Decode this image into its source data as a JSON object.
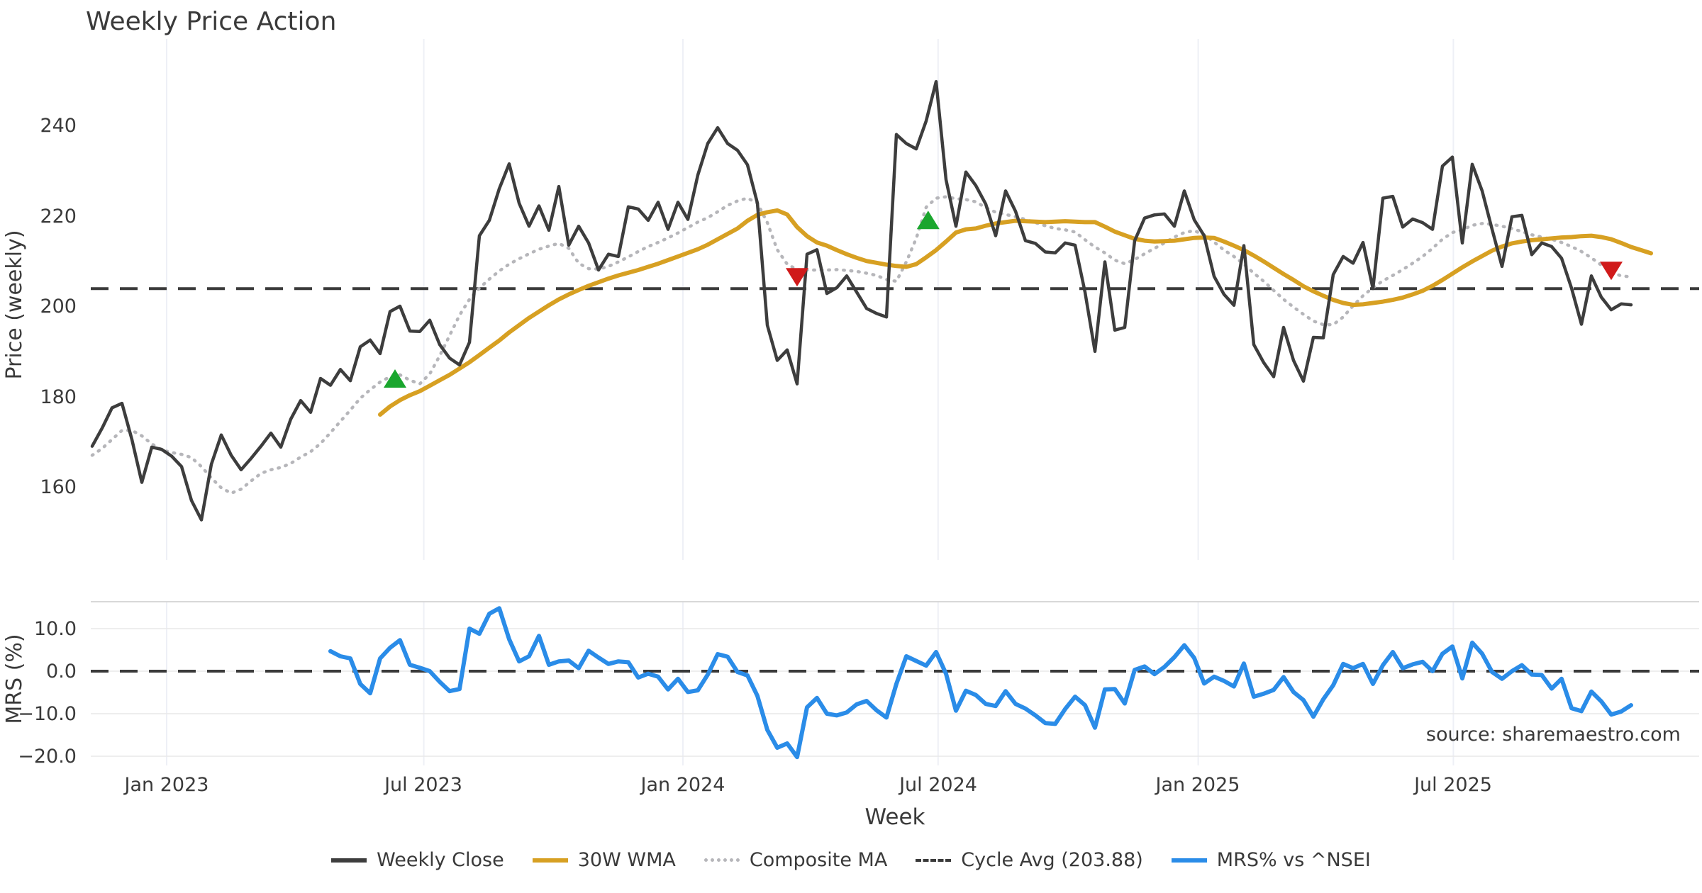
{
  "title": "Weekly Price Action",
  "annotations": {
    "source": "source: sharemaestro.com"
  },
  "axes": {
    "price": {
      "label": "Price (weekly)",
      "tick_labels": [
        "240",
        "220",
        "200",
        "180",
        "160"
      ],
      "tick_values": [
        240,
        220,
        200,
        180,
        160
      ]
    },
    "mrs": {
      "label": "MRS (%)",
      "tick_labels": [
        "10.0",
        "0.0",
        "−10.0",
        "−20.0"
      ],
      "tick_values": [
        10,
        0,
        -10,
        -20
      ]
    },
    "x": {
      "label": "Week",
      "ticks": [
        {
          "label": "Jan 2023",
          "week": 7.5
        },
        {
          "label": "Jul 2023",
          "week": 33.4
        },
        {
          "label": "Jan 2024",
          "week": 59.5
        },
        {
          "label": "Jul 2024",
          "week": 85.2
        },
        {
          "label": "Jan 2025",
          "week": 111.4
        },
        {
          "label": "Jul 2025",
          "week": 137.1
        }
      ]
    }
  },
  "legend": {
    "items": [
      {
        "label": "Weekly Close",
        "color": "#3d3d3d",
        "style": "solid"
      },
      {
        "label": "30W WMA",
        "color": "#d7a022",
        "style": "solid"
      },
      {
        "label": "Composite MA",
        "color": "#b6b6ba",
        "style": "dotted"
      },
      {
        "label": "Cycle Avg (203.88)",
        "color": "#3a3a3a",
        "style": "dashed"
      },
      {
        "label": "MRS% vs ^NSEI",
        "color": "#2a8ce8",
        "style": "solid"
      }
    ]
  },
  "chart_data": {
    "type": "line",
    "title": "Weekly Price Action",
    "xlabel": "Week",
    "x_unit": "weekly index from mid-Nov 2022",
    "panels": {
      "price": {
        "ylabel": "Price (weekly)",
        "ylim": [
          142,
          259
        ],
        "grid": "vertical-only"
      },
      "mrs": {
        "ylabel": "MRS (%)",
        "ylim": [
          -23,
          16.3
        ],
        "grid": "horizontal+vertical"
      }
    },
    "cycle_avg": 203.88,
    "mrs_zero_line": 0,
    "series": [
      {
        "name": "Weekly Close",
        "panel": "price",
        "color": "#3d3d3d",
        "style": "solid",
        "start_week": 0,
        "values": [
          169,
          173,
          177.5,
          178.5,
          170.5,
          161,
          168.8,
          168.3,
          166.8,
          164.5,
          157,
          152.7,
          165,
          171.5,
          167,
          163.8,
          166.3,
          169,
          171.9,
          168.8,
          175,
          179.1,
          176.5,
          184,
          182.5,
          186,
          183.5,
          191,
          192.5,
          189.5,
          198.8,
          200,
          194.5,
          194.4,
          196.9,
          191.5,
          188.5,
          187,
          192,
          215.6,
          219,
          226,
          231.5,
          222.8,
          217.7,
          222.2,
          216.8,
          226.5,
          213.5,
          217.7,
          214,
          208,
          211.5,
          211,
          222,
          221.5,
          219,
          223,
          217,
          223,
          219.2,
          229,
          236,
          239.5,
          236,
          234.5,
          231.3,
          222.8,
          195.8,
          188,
          190.3,
          182.8,
          211.5,
          212.5,
          202.8,
          204.1,
          206.7,
          203.1,
          199.5,
          198.4,
          197.6,
          238,
          236,
          234.8,
          241,
          249.7,
          228,
          217.7,
          229.7,
          226.7,
          222.6,
          215.6,
          225.5,
          221,
          214.5,
          213.9,
          212,
          211.8,
          214,
          213.5,
          203.1,
          190,
          209.8,
          194.7,
          195.3,
          214.5,
          219.5,
          220.2,
          220.4,
          217.7,
          225.5,
          219.1,
          215.6,
          206.6,
          202.6,
          200.2,
          213.4,
          191.5,
          187.5,
          184.4,
          195.3,
          188,
          183.4,
          193.1,
          193,
          207,
          211,
          209.5,
          214.1,
          203.9,
          223.9,
          224.3,
          217.5,
          219.3,
          218.5,
          217,
          231,
          233,
          214,
          231.4,
          225.5,
          217,
          208.8,
          219.8,
          220.1,
          211.4,
          214,
          213.2,
          210.6,
          204,
          196,
          206.7,
          202,
          199.2,
          200.5,
          200.3
        ]
      },
      {
        "name": "30W WMA",
        "panel": "price",
        "color": "#d7a022",
        "style": "solid",
        "start_week": 29,
        "values": [
          176,
          177.8,
          179.2,
          180.3,
          181.2,
          182.4,
          183.6,
          184.8,
          186.2,
          187.6,
          189.2,
          190.8,
          192.4,
          194.2,
          195.8,
          197.4,
          198.8,
          200.2,
          201.5,
          202.6,
          203.6,
          204.5,
          205.3,
          206.1,
          206.8,
          207.4,
          208,
          208.7,
          209.4,
          210.2,
          211,
          211.8,
          212.6,
          213.6,
          214.8,
          216,
          217.2,
          218.9,
          220.2,
          220.8,
          221.2,
          220.3,
          217.5,
          215.5,
          214.1,
          213.4,
          212.4,
          211.5,
          210.7,
          210,
          209.6,
          209.2,
          208.9,
          208.7,
          209.3,
          210.8,
          212.4,
          214.3,
          216.3,
          217,
          217.2,
          217.8,
          218.3,
          218.6,
          218.9,
          218.8,
          218.7,
          218.6,
          218.7,
          218.8,
          218.7,
          218.6,
          218.6,
          217.6,
          216.5,
          215.7,
          214.9,
          214.5,
          214.3,
          214.4,
          214.5,
          214.8,
          215.1,
          215.2,
          215.1,
          214.3,
          213.4,
          212.4,
          211.2,
          209.9,
          208.5,
          207.1,
          205.8,
          204.4,
          203.3,
          202.3,
          201.4,
          200.7,
          200.3,
          200.4,
          200.7,
          201,
          201.4,
          201.9,
          202.6,
          203.4,
          204.5,
          205.8,
          207.2,
          208.6,
          209.9,
          211.1,
          212.3,
          213.2,
          213.9,
          214.3,
          214.6,
          214.8,
          215,
          215.2,
          215.3,
          215.5,
          215.6,
          215.3,
          214.8,
          214,
          213.1,
          212.4,
          211.7
        ]
      },
      {
        "name": "Composite MA",
        "panel": "price",
        "color": "#b6b6ba",
        "style": "dotted",
        "start_week": 0,
        "values": [
          167,
          168.5,
          170.5,
          172.5,
          172.5,
          171.3,
          169.5,
          168.2,
          167.6,
          167.2,
          166.5,
          164.5,
          162,
          159.8,
          158.6,
          159.5,
          161.3,
          163,
          163.8,
          164.3,
          165.2,
          166.6,
          167.8,
          169.6,
          172,
          174.5,
          177,
          179.6,
          181.5,
          183.2,
          184.4,
          184.8,
          183.6,
          182.8,
          185,
          189,
          193.5,
          198,
          201.5,
          204,
          206,
          207.8,
          209.3,
          210.5,
          211.6,
          212.6,
          213.3,
          213.9,
          212.8,
          209.5,
          208.3,
          208.2,
          208.8,
          209.8,
          210.9,
          212.1,
          213.2,
          214.1,
          215.1,
          216.2,
          217.4,
          218.6,
          219.6,
          220.9,
          222.3,
          223.3,
          223.9,
          222.8,
          218.5,
          212.5,
          209.3,
          208.1,
          208,
          208,
          208,
          208.1,
          207.9,
          207.7,
          207.3,
          206.8,
          205.9,
          205.5,
          209.8,
          215,
          221.9,
          223.9,
          224.2,
          223.8,
          223.6,
          223.1,
          221.8,
          220.8,
          220.3,
          219.8,
          219.2,
          218.5,
          217.8,
          217.2,
          216.9,
          216.4,
          214.7,
          213.1,
          211.8,
          210.2,
          209.4,
          210.3,
          211.6,
          212.8,
          214,
          215.3,
          216.3,
          216.7,
          215.8,
          214.2,
          212.4,
          211,
          209.3,
          207.3,
          205.5,
          203.5,
          201.5,
          199.8,
          198.2,
          196.7,
          195.9,
          195.9,
          197.6,
          200.1,
          202.3,
          204.1,
          205.6,
          206.8,
          208.1,
          209.5,
          211,
          212.8,
          214.8,
          216.3,
          216.9,
          217.9,
          218.3,
          218.1,
          217.7,
          217.2,
          216.5,
          215.8,
          215.3,
          214.8,
          214.1,
          213.2,
          212.1,
          210.7,
          209.1,
          207.5,
          206.7,
          206.5
        ]
      },
      {
        "name": "MRS% vs ^NSEI",
        "panel": "mrs",
        "color": "#2a8ce8",
        "style": "solid",
        "start_week": 24,
        "values": [
          4.7,
          3.5,
          3,
          -3,
          -5.2,
          3,
          5.5,
          7.3,
          1.5,
          0.8,
          0,
          -2.5,
          -4.7,
          -4.2,
          10,
          8.8,
          13.5,
          14.8,
          7.5,
          2.3,
          3.5,
          8.3,
          1.5,
          2.3,
          2.5,
          0.7,
          4.8,
          3.2,
          1.7,
          2.3,
          2.1,
          -1.5,
          -0.6,
          -1.3,
          -4.3,
          -1.8,
          -4.9,
          -4.5,
          -0.8,
          4,
          3.4,
          -0.2,
          -1,
          -5.8,
          -13.8,
          -18,
          -17,
          -20.2,
          -8.5,
          -6.3,
          -10,
          -10.4,
          -9.7,
          -7.8,
          -7,
          -9.2,
          -10.9,
          -3,
          3.5,
          2.4,
          1.3,
          4.5,
          -0.6,
          -9.3,
          -4.6,
          -5.6,
          -7.7,
          -8.2,
          -4.7,
          -7.7,
          -8.8,
          -10.4,
          -12.2,
          -12.4,
          -8.9,
          -6,
          -8,
          -13.3,
          -4.3,
          -4.2,
          -7.6,
          0.3,
          1.1,
          -0.7,
          1,
          3.3,
          6.1,
          3.1,
          -2.9,
          -1.3,
          -2.3,
          -3.6,
          1.8,
          -6,
          -5.3,
          -4.4,
          -1.4,
          -4.9,
          -6.8,
          -10.7,
          -6.6,
          -3.3,
          1.7,
          0.7,
          1.7,
          -3,
          1.4,
          4.5,
          0.7,
          1.6,
          2.2,
          0,
          4.1,
          5.8,
          -1.7,
          6.7,
          4.1,
          -0.2,
          -1.8,
          0,
          1.4,
          -0.8,
          -0.9,
          -4.1,
          -1.8,
          -8.7,
          -9.4,
          -4.8,
          -7.1,
          -10.2,
          -9.5,
          -8
        ]
      }
    ],
    "markers": [
      {
        "week": 30.5,
        "value": 184,
        "type": "buy",
        "color": "#1aa62e"
      },
      {
        "week": 71,
        "value": 206.4,
        "type": "sell",
        "color": "#d01a1a"
      },
      {
        "week": 84.2,
        "value": 219.1,
        "type": "buy",
        "color": "#1aa62e"
      },
      {
        "week": 153,
        "value": 207.8,
        "type": "sell",
        "color": "#d01a1a"
      }
    ],
    "colors": {
      "weekly_close": "#3d3d3d",
      "wma30": "#d7a022",
      "composite": "#b6b6ba",
      "cycle_avg": "#3a3a3a",
      "mrs": "#2a8ce8",
      "buy_marker": "#1aa62e",
      "sell_marker": "#d01a1a",
      "grid_vertical": "#eef0f6",
      "grid_horizontal": "#e8e8e8",
      "panel_spine": "#d8d8d8",
      "text": "#3a3a3a",
      "source_text": "#a3a3a3"
    }
  }
}
